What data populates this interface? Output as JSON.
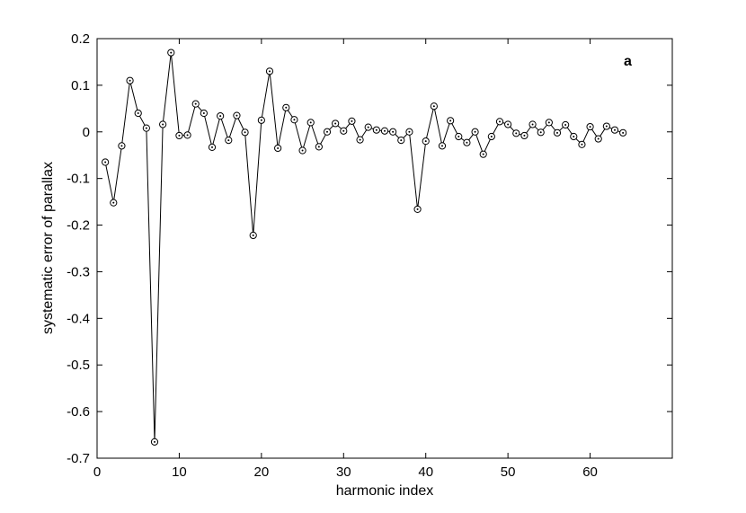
{
  "chart_data": {
    "type": "line",
    "title": "",
    "annotation": "a",
    "xlabel": "harmonic index",
    "ylabel": "systematic error of parallax",
    "xlim": [
      0,
      70
    ],
    "ylim": [
      -0.7,
      0.2
    ],
    "xticks": [
      0,
      10,
      20,
      30,
      40,
      50,
      60
    ],
    "yticks": [
      0.2,
      0.1,
      0,
      -0.1,
      -0.2,
      -0.3,
      -0.4,
      -0.5,
      -0.6,
      -0.7
    ],
    "xtick_labels": [
      "0",
      "10",
      "20",
      "30",
      "40",
      "50",
      "60"
    ],
    "ytick_labels": [
      "0.2",
      "0.1",
      "0",
      "-0.1",
      "-0.2",
      "-0.3",
      "-0.4",
      "-0.5",
      "-0.6",
      "-0.7"
    ],
    "grid": false,
    "marker": "circle-with-dot",
    "line_color": "#000000",
    "x": [
      1,
      2,
      3,
      4,
      5,
      6,
      7,
      8,
      9,
      10,
      11,
      12,
      13,
      14,
      15,
      16,
      17,
      18,
      19,
      20,
      21,
      22,
      23,
      24,
      25,
      26,
      27,
      28,
      29,
      30,
      31,
      32,
      33,
      34,
      35,
      36,
      37,
      38,
      39,
      40,
      41,
      42,
      43,
      44,
      45,
      46,
      47,
      48,
      49,
      50,
      51,
      52,
      53,
      54,
      55,
      56,
      57,
      58,
      59,
      60,
      61,
      62,
      63,
      64
    ],
    "y": [
      -0.065,
      -0.152,
      -0.03,
      0.11,
      0.04,
      0.008,
      -0.665,
      0.016,
      0.17,
      -0.008,
      -0.007,
      0.06,
      0.04,
      -0.033,
      0.034,
      -0.018,
      0.035,
      -0.001,
      -0.222,
      0.025,
      0.13,
      -0.035,
      0.052,
      0.026,
      -0.04,
      0.02,
      -0.032,
      0.0,
      0.018,
      0.002,
      0.023,
      -0.017,
      0.01,
      0.004,
      0.002,
      0.0,
      -0.018,
      0.0,
      -0.166,
      -0.02,
      0.055,
      -0.03,
      0.024,
      -0.01,
      -0.023,
      0.0,
      -0.048,
      -0.01,
      0.022,
      0.016,
      -0.003,
      -0.008,
      0.016,
      -0.001,
      0.02,
      -0.002,
      0.015,
      -0.01,
      -0.027,
      0.011,
      -0.015,
      0.012,
      0.004,
      -0.002
    ]
  }
}
